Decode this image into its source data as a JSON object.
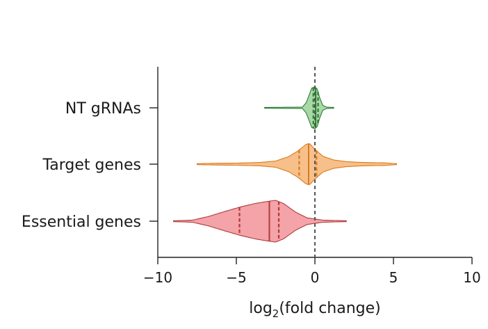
{
  "chart_data": {
    "type": "violin",
    "title": "",
    "xlabel_main": "log",
    "xlabel_sub": "2",
    "xlabel_rest": "(fold change)",
    "ylabel": "",
    "xlim": [
      -10,
      10
    ],
    "xticks": [
      -10,
      -5,
      0,
      5,
      10
    ],
    "xtick_labels": [
      "−10",
      "−5",
      "0",
      "5",
      "10"
    ],
    "reference_line_x": 0,
    "categories": [
      "NT gRNAs",
      "Target genes",
      "Essential genes"
    ],
    "series": [
      {
        "label": "NT gRNAs",
        "color": "#a8d8a8",
        "edge": "#2e7d32",
        "whisker": [
          -3.2,
          1.2
        ],
        "median": 0.05,
        "quartiles": [
          -0.1,
          0.2
        ],
        "density": [
          [
            -3.2,
            0.02
          ],
          [
            -0.8,
            0.03
          ],
          [
            -0.55,
            0.25
          ],
          [
            -0.35,
            0.65
          ],
          [
            -0.2,
            0.95
          ],
          [
            0.0,
            1.0
          ],
          [
            0.15,
            0.9
          ],
          [
            0.3,
            0.5
          ],
          [
            0.5,
            0.12
          ],
          [
            0.75,
            0.03
          ],
          [
            1.2,
            0.02
          ]
        ]
      },
      {
        "label": "Target genes",
        "color": "#f7c08a",
        "edge": "#d97a1c",
        "whisker": [
          -7.5,
          5.2
        ],
        "median": -0.4,
        "quartiles": [
          -1.0,
          0.1
        ],
        "density": [
          [
            -7.5,
            0.02
          ],
          [
            -6.5,
            0.04
          ],
          [
            -5.0,
            0.05
          ],
          [
            -3.5,
            0.08
          ],
          [
            -2.5,
            0.15
          ],
          [
            -1.7,
            0.35
          ],
          [
            -1.1,
            0.62
          ],
          [
            -0.6,
            0.93
          ],
          [
            -0.35,
            1.0
          ],
          [
            0.0,
            0.72
          ],
          [
            0.5,
            0.38
          ],
          [
            1.2,
            0.2
          ],
          [
            2.0,
            0.12
          ],
          [
            3.0,
            0.08
          ],
          [
            4.5,
            0.06
          ],
          [
            5.2,
            0.02
          ]
        ]
      },
      {
        "label": "Essential genes",
        "color": "#f4a3a8",
        "edge": "#b03a3a",
        "whisker": [
          -9.0,
          2.0
        ],
        "median": -2.9,
        "quartiles": [
          -4.8,
          -2.3
        ],
        "density": [
          [
            -9.0,
            0.02
          ],
          [
            -7.8,
            0.05
          ],
          [
            -6.8,
            0.22
          ],
          [
            -5.8,
            0.45
          ],
          [
            -4.8,
            0.67
          ],
          [
            -3.8,
            0.85
          ],
          [
            -3.0,
            0.95
          ],
          [
            -2.5,
            1.0
          ],
          [
            -2.0,
            0.85
          ],
          [
            -1.2,
            0.42
          ],
          [
            -0.5,
            0.16
          ],
          [
            0.5,
            0.05
          ],
          [
            2.0,
            0.02
          ]
        ]
      }
    ]
  }
}
